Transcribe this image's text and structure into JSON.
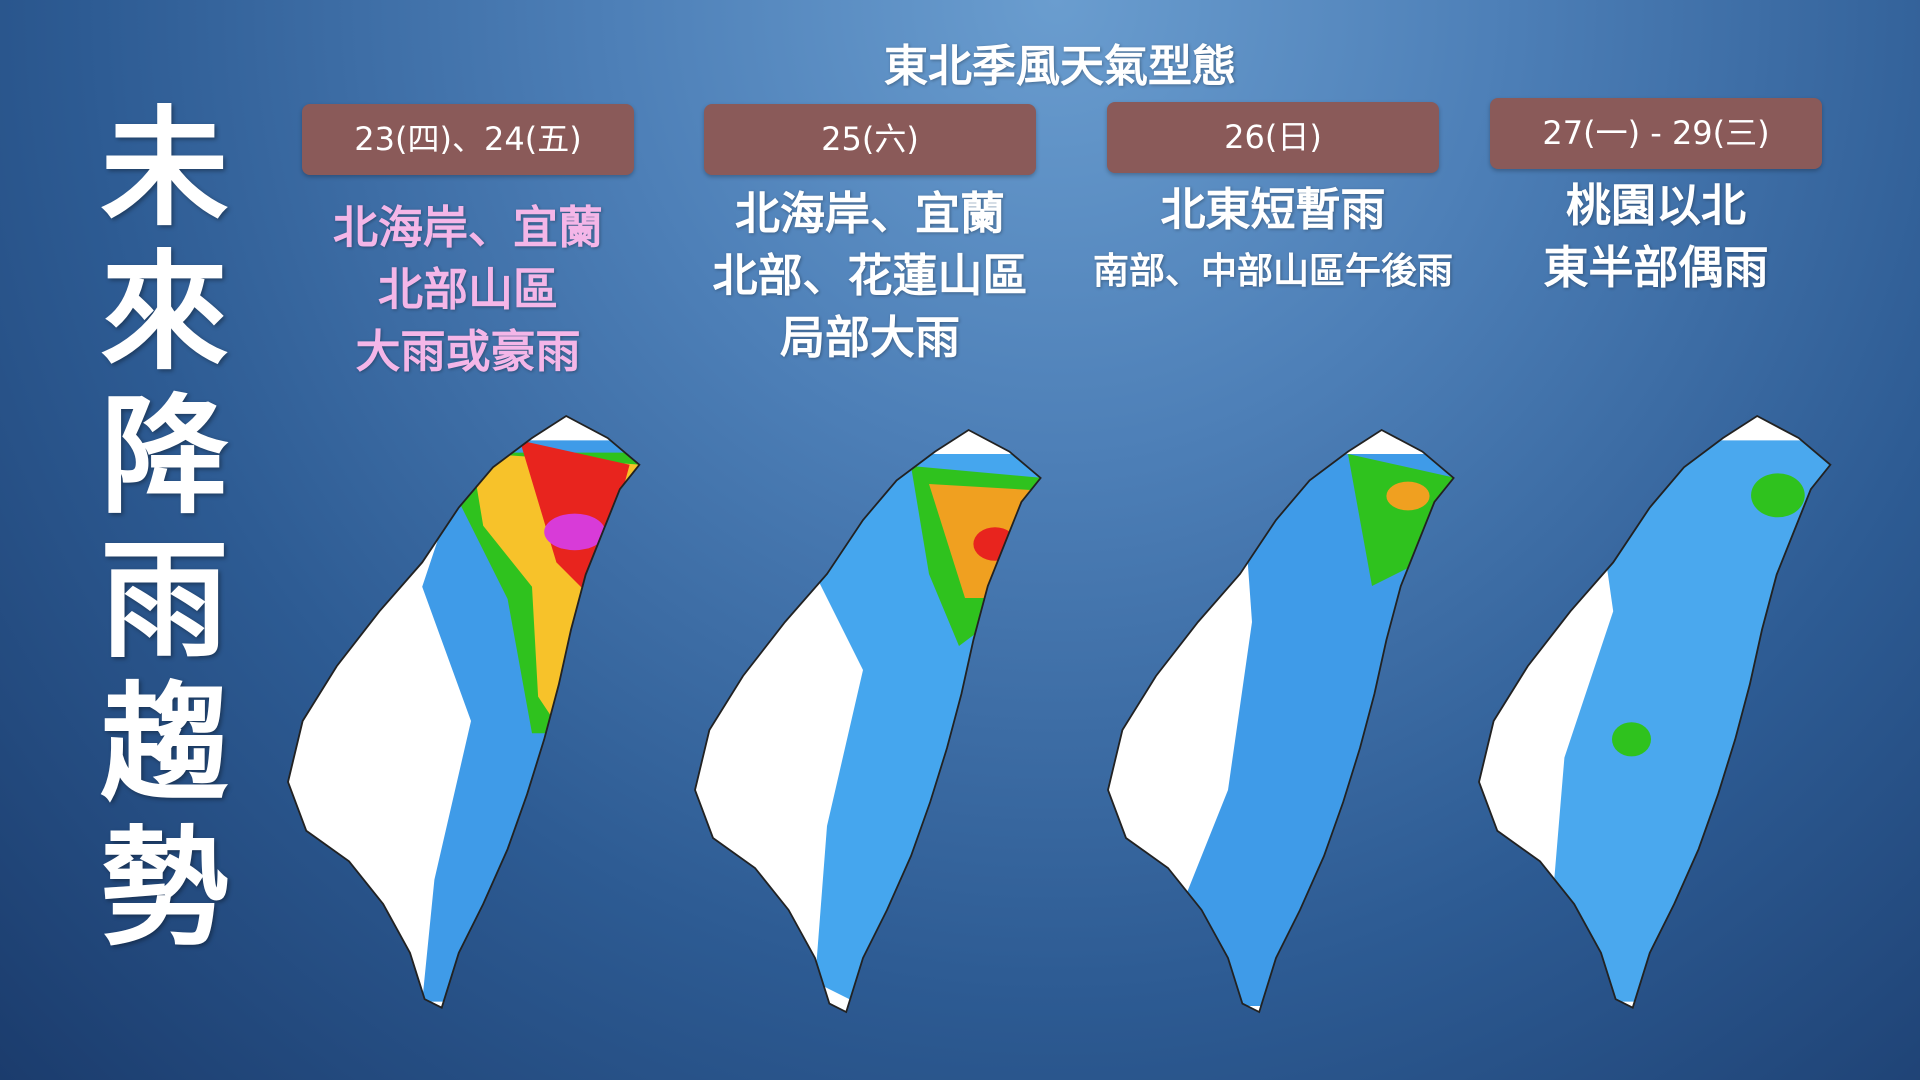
{
  "title": "未來降雨趨勢",
  "header": "東北季風天氣型態",
  "panels": [
    {
      "date": "23(四)、24(五)",
      "lines": [
        "北海岸、宜蘭",
        "北部山區",
        "大雨或豪雨"
      ]
    },
    {
      "date": "25(六)",
      "lines": [
        "北海岸、宜蘭",
        "北部、花蓮山區",
        "局部大雨"
      ]
    },
    {
      "date": "26(日)",
      "lines": [
        "北東短暫雨",
        "南部、中部山區午後雨"
      ]
    },
    {
      "date": "27(一) - 29(三)",
      "lines": [
        "桃園以北",
        "東半部偶雨"
      ]
    }
  ]
}
